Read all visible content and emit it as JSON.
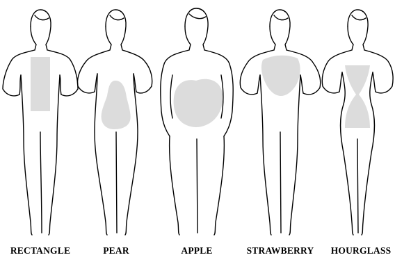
{
  "colors": {
    "outline": "#000000",
    "shape_fill": "#dcdcdc",
    "background": "#ffffff"
  },
  "figures": [
    {
      "label": "RECTANGLE",
      "shape": "rectangle"
    },
    {
      "label": "PEAR",
      "shape": "pear"
    },
    {
      "label": "APPLE",
      "shape": "apple"
    },
    {
      "label": "STRAWBERRY",
      "shape": "strawberry"
    },
    {
      "label": "HOURGLASS",
      "shape": "hourglass"
    }
  ]
}
